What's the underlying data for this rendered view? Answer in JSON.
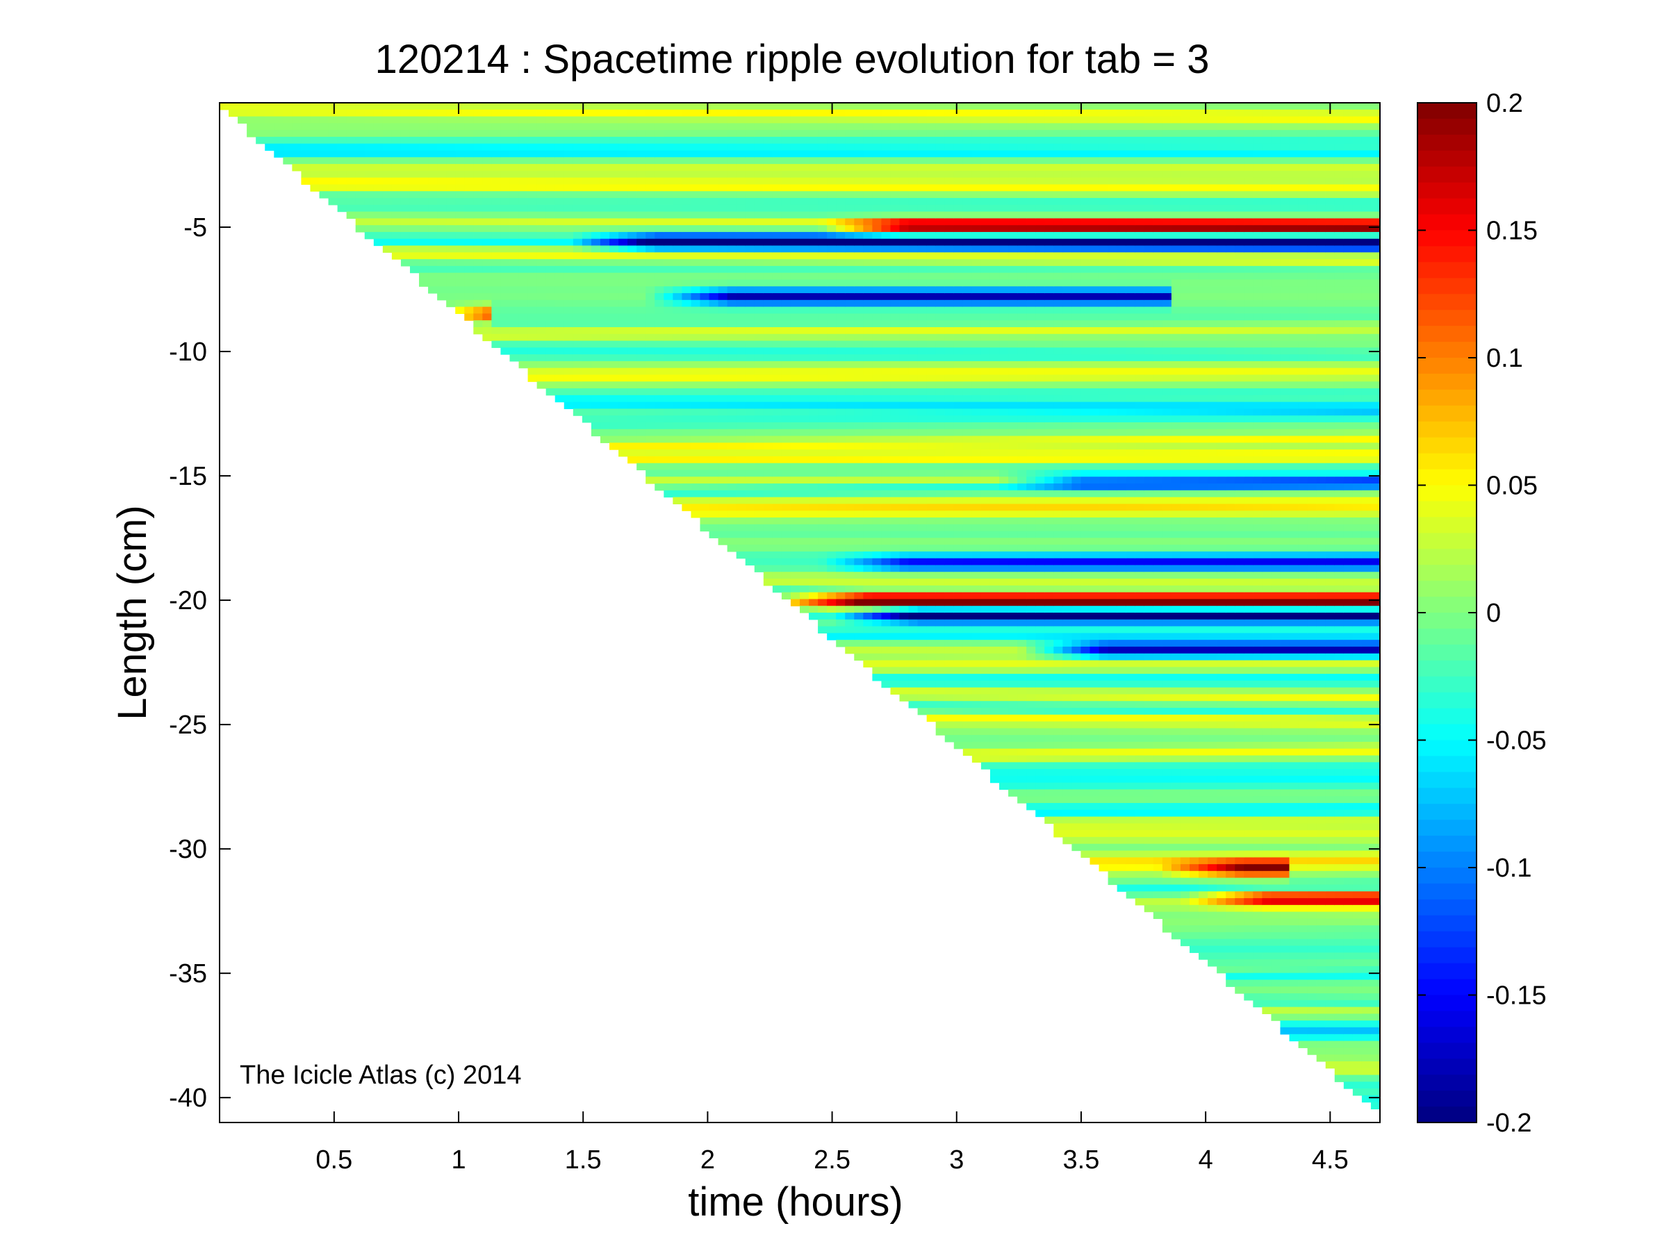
{
  "chart_data": {
    "type": "heatmap",
    "title": "120214 : Spacetime ripple evolution for tab = 3",
    "xlabel": "time (hours)",
    "ylabel": "Length (cm)",
    "xlim": [
      0.04,
      4.7
    ],
    "ylim": [
      -41,
      0
    ],
    "x_ticks": [
      0.5,
      1,
      1.5,
      2,
      2.5,
      3,
      3.5,
      4,
      4.5
    ],
    "x_tick_labels": [
      "0.5",
      "1",
      "1.5",
      "2",
      "2.5",
      "3",
      "3.5",
      "4",
      "4.5"
    ],
    "y_ticks": [
      -5,
      -10,
      -15,
      -20,
      -25,
      -30,
      -35,
      -40
    ],
    "y_tick_labels": [
      "-5",
      "-10",
      "-15",
      "-20",
      "-25",
      "-30",
      "-35",
      "-40"
    ],
    "colorbar": {
      "colormap": "jet",
      "clim": [
        -0.2,
        0.2
      ],
      "ticks": [
        0.2,
        0.15,
        0.1,
        0.05,
        0,
        -0.05,
        -0.1,
        -0.15,
        -0.2
      ],
      "tick_labels": [
        "0.2",
        "0.15",
        "0.1",
        "0.05",
        "0",
        "-0.05",
        "-0.1",
        "-0.15",
        "-0.2"
      ]
    },
    "grid": false,
    "annotation": "The Icicle Atlas (c) 2014",
    "growth_front": {
      "t_start": 0.04,
      "t_end": 4.7,
      "length_end": -40.5
    },
    "notable_features": [
      {
        "length": -20.0,
        "t_from": 2.35,
        "t_to": 4.7,
        "value": 0.2,
        "sign": "positive"
      },
      {
        "length": -20.6,
        "t_from": 2.55,
        "t_to": 4.7,
        "value": -0.2,
        "sign": "negative"
      },
      {
        "length": -22.0,
        "t_from": 3.3,
        "t_to": 4.7,
        "value": -0.2,
        "sign": "negative"
      },
      {
        "length": -5.0,
        "t_from": 2.5,
        "t_to": 4.7,
        "value": 0.18,
        "sign": "positive"
      },
      {
        "length": -5.6,
        "t_from": 1.5,
        "t_to": 4.7,
        "value": -0.18,
        "sign": "negative"
      },
      {
        "length": -8.5,
        "t_from": 0.9,
        "t_to": 1.1,
        "value": 0.18,
        "sign": "positive"
      },
      {
        "length": -7.8,
        "t_from": 1.8,
        "t_to": 3.8,
        "value": -0.18,
        "sign": "negative"
      },
      {
        "length": -30.8,
        "t_from": 3.85,
        "t_to": 4.3,
        "value": 0.16,
        "sign": "positive"
      },
      {
        "length": -32.0,
        "t_from": 3.95,
        "t_to": 4.7,
        "value": 0.15,
        "sign": "positive"
      },
      {
        "length": -15.2,
        "t_from": 3.2,
        "t_to": 4.7,
        "value": -0.12,
        "sign": "negative"
      },
      {
        "length": -18.5,
        "t_from": 2.5,
        "t_to": 4.7,
        "value": -0.12,
        "sign": "negative"
      }
    ]
  }
}
